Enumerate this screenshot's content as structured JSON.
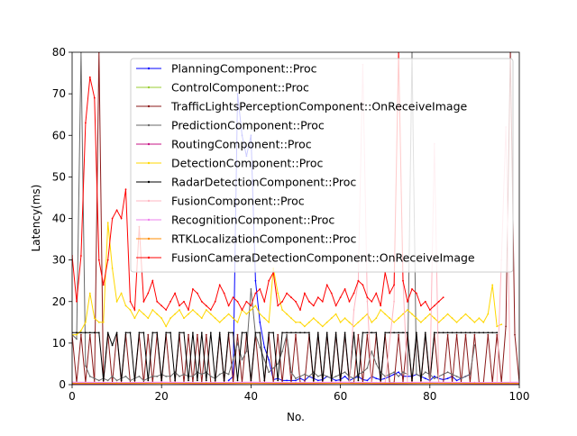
{
  "chart_data": {
    "type": "line",
    "xlabel": "No.",
    "ylabel": "Latency(ms)",
    "xlim": [
      0,
      100
    ],
    "ylim": [
      0,
      80
    ],
    "xticks": [
      0,
      20,
      40,
      60,
      80,
      100
    ],
    "yticks": [
      0,
      10,
      20,
      30,
      40,
      50,
      60,
      70,
      80
    ],
    "legend_position": "top-right",
    "grid": false,
    "series": [
      {
        "name": "PlanningComponent::Proc",
        "color": "#0000ff",
        "x": [
          35,
          36,
          37,
          38,
          39,
          40,
          41,
          42,
          43,
          44,
          45,
          46,
          47,
          48,
          49,
          50,
          51,
          52,
          53,
          54,
          55,
          56,
          57,
          58,
          59,
          60,
          61,
          62,
          63,
          64,
          65,
          66,
          67,
          68,
          69,
          70,
          71,
          72,
          73,
          74,
          75,
          76,
          77,
          78,
          79,
          80,
          81,
          82,
          83,
          84,
          85,
          86,
          87,
          88,
          89
        ],
        "values": [
          1,
          2,
          70,
          60,
          55,
          60,
          25,
          15,
          9,
          6,
          1.2,
          1.5,
          1,
          1,
          1,
          1,
          1.5,
          1,
          2,
          1.5,
          1,
          1.2,
          2,
          1.5,
          1,
          1.2,
          2,
          1,
          1.5,
          2,
          1.2,
          1,
          2,
          1.5,
          1.2,
          1.5,
          2,
          2.5,
          3,
          2,
          2,
          2,
          2.5,
          2,
          1.5,
          1,
          2,
          1.5,
          1.2,
          1.5,
          2,
          1,
          1.5,
          2,
          2.5
        ]
      },
      {
        "name": "ControlComponent::Proc",
        "color": "#9acd32",
        "x": [
          0,
          5,
          10,
          15,
          20,
          25,
          30,
          35,
          40,
          45,
          50,
          55,
          60,
          65,
          70,
          75,
          80,
          85,
          90,
          95,
          100
        ],
        "values": [
          0.4,
          0.3,
          0.4,
          0.3,
          0.4,
          0.3,
          0.4,
          0.3,
          0.4,
          0.3,
          0.4,
          0.3,
          0.4,
          0.3,
          0.4,
          0.3,
          0.4,
          0.3,
          0.4,
          0.5,
          0.4
        ]
      },
      {
        "name": "TrafficLightsPerceptionComponent::OnReceiveImage",
        "color": "#8b1a1a",
        "x": [
          0,
          1,
          2,
          3,
          4,
          5,
          6,
          7,
          8,
          9,
          10,
          11,
          12,
          13,
          14,
          15,
          16,
          17,
          18,
          19,
          20,
          21,
          22,
          23,
          24,
          25,
          26,
          27,
          28,
          29,
          30,
          31,
          32,
          33,
          34,
          35,
          36,
          37,
          38,
          39,
          40,
          41,
          42,
          43,
          44,
          45,
          46,
          47,
          48,
          49,
          50,
          51,
          52,
          53,
          54,
          55,
          56,
          57,
          58,
          59,
          60,
          61,
          62,
          63,
          64,
          65,
          66,
          67,
          68,
          69,
          70,
          71,
          72,
          73,
          74,
          75,
          76,
          77,
          78,
          79,
          80,
          81,
          82,
          83,
          84,
          85,
          86,
          87,
          88,
          89,
          90,
          91,
          92,
          93,
          94,
          95,
          96,
          97,
          98,
          99,
          100
        ],
        "values": [
          12,
          0.5,
          12,
          0.5,
          12,
          0.5,
          80,
          0.5,
          12,
          0.5,
          12,
          0.5,
          12,
          0.5,
          0.5,
          12,
          0.5,
          12,
          0.5,
          12,
          0.5,
          12,
          0.5,
          0.5,
          12,
          0.5,
          12,
          0.5,
          12,
          0.5,
          12,
          0.5,
          0.5,
          12,
          0.5,
          12,
          0.5,
          12,
          0.5,
          12,
          0.5,
          12,
          0.5,
          0.5,
          12,
          0.5,
          12,
          0.5,
          12,
          0.5,
          12,
          0.5,
          0.5,
          12,
          0.5,
          12,
          0.5,
          12,
          0.5,
          12,
          0.5,
          12,
          0.5,
          0.5,
          12,
          0.5,
          12,
          0.5,
          12,
          0.5,
          12,
          0.5,
          0.5,
          12,
          0.5,
          12,
          0.5,
          12,
          0.5,
          12,
          0.5,
          12,
          0.5,
          0.5,
          12,
          0.5,
          12,
          0.5,
          12,
          0.5,
          12,
          0.5,
          0.5,
          12,
          0.5,
          12,
          0.5,
          14,
          80,
          12,
          0.5
        ]
      },
      {
        "name": "PredictionComponent::Proc",
        "color": "#696969",
        "x": [
          0,
          1,
          2,
          3,
          4,
          5,
          6,
          7,
          8,
          9,
          10,
          11,
          12,
          13,
          14,
          15,
          16,
          17,
          18,
          19,
          20,
          21,
          22,
          23,
          24,
          25,
          26,
          27,
          28,
          29,
          30,
          31,
          32,
          33,
          34,
          35,
          36,
          37,
          38,
          39,
          40,
          41,
          42,
          43,
          44,
          45,
          46,
          47,
          48,
          49,
          50,
          51,
          52,
          53,
          54,
          55,
          56,
          57,
          58,
          59,
          60,
          61,
          62,
          63,
          64,
          65,
          66,
          67,
          68,
          69,
          70,
          71,
          72,
          73,
          74,
          75,
          76,
          77,
          78,
          79,
          80,
          81,
          82,
          83,
          84,
          85,
          86,
          87,
          88,
          89,
          90
        ],
        "values": [
          12,
          11,
          80,
          4.5,
          2,
          1.5,
          1,
          1.5,
          1,
          2,
          1,
          1.5,
          2,
          1,
          1.5,
          2,
          1,
          1.5,
          2,
          2,
          2.5,
          2,
          2,
          3,
          2,
          2.5,
          2,
          2,
          3,
          2.5,
          3,
          2,
          1.5,
          2.5,
          3,
          2.5,
          6,
          10,
          6,
          8,
          23,
          12,
          9,
          6,
          3,
          4,
          5,
          8,
          12,
          3,
          1.5,
          2,
          2.5,
          2,
          3,
          2,
          2.5,
          2,
          1.5,
          2,
          2.5,
          3,
          2,
          1.5,
          2.5,
          3,
          4,
          8,
          5,
          3,
          2,
          2.5,
          3,
          2,
          3,
          2.5,
          80,
          2.5,
          2,
          3,
          2.5,
          1.5,
          2,
          2.5,
          3,
          2.5,
          2,
          1.5,
          2,
          2.5,
          9.5
        ]
      },
      {
        "name": "RoutingComponent::Proc",
        "color": "#c71585",
        "x": [
          0,
          10,
          20,
          30,
          40,
          50,
          60,
          70,
          80,
          90,
          100
        ],
        "values": [
          0.2,
          0.2,
          0.3,
          0.2,
          0.3,
          0.2,
          0.3,
          0.2,
          0.3,
          0.2,
          0.2
        ]
      },
      {
        "name": "DetectionComponent::Proc",
        "color": "#ffd700",
        "x": [
          0,
          1,
          2,
          3,
          4,
          5,
          6,
          7,
          8,
          9,
          10,
          11,
          12,
          13,
          14,
          15,
          16,
          17,
          18,
          19,
          20,
          21,
          22,
          23,
          24,
          25,
          26,
          27,
          28,
          29,
          30,
          31,
          32,
          33,
          34,
          35,
          36,
          37,
          38,
          39,
          40,
          41,
          42,
          43,
          44,
          45,
          46,
          47,
          48,
          49,
          50,
          51,
          52,
          53,
          54,
          55,
          56,
          57,
          58,
          59,
          60,
          61,
          62,
          63,
          64,
          65,
          66,
          67,
          68,
          69,
          70,
          71,
          72,
          73,
          74,
          75,
          76,
          77,
          78,
          79,
          80,
          81,
          82,
          83,
          84,
          85,
          86,
          87,
          88,
          89,
          90,
          91,
          92,
          93,
          94,
          95,
          96
        ],
        "values": [
          12,
          12,
          13,
          15,
          22,
          16,
          15,
          15,
          39,
          28,
          20,
          22,
          19,
          18,
          16,
          18,
          17,
          16,
          18,
          17,
          16,
          14,
          16,
          17,
          18,
          16,
          17,
          18,
          17,
          16,
          18,
          17,
          16,
          15,
          16,
          17,
          16,
          15,
          18,
          17,
          18,
          19,
          17,
          16,
          15,
          28,
          22,
          18,
          17,
          16,
          15,
          15,
          14,
          15,
          16,
          15,
          14,
          15,
          16,
          17,
          15,
          16,
          15,
          14,
          15,
          16,
          17,
          15,
          16,
          18,
          17,
          16,
          15,
          16,
          17,
          18,
          17,
          16,
          15,
          16,
          17,
          16,
          15,
          16,
          17,
          16,
          15,
          16,
          17,
          16,
          15,
          16,
          15,
          17,
          24,
          14,
          14.5
        ]
      },
      {
        "name": "RadarDetectionComponent::Proc",
        "color": "#000000",
        "x": [
          0,
          1,
          2,
          3,
          4,
          5,
          6,
          7,
          8,
          9,
          10,
          11,
          12,
          13,
          14,
          15,
          16,
          17,
          18,
          19,
          20,
          21,
          22,
          23,
          24,
          25,
          26,
          27,
          28,
          29,
          30,
          31,
          32,
          33,
          34,
          35,
          36,
          37,
          38,
          39,
          40,
          41,
          42,
          43,
          44,
          45,
          46,
          47,
          48,
          49,
          50,
          51,
          52,
          53,
          54,
          55,
          56,
          57,
          58,
          59,
          60,
          61,
          62,
          63,
          64,
          65,
          66,
          67,
          68,
          69,
          70,
          71,
          72,
          73,
          74,
          75,
          76,
          77,
          78,
          79,
          80,
          81,
          82,
          83,
          84,
          85,
          86,
          87,
          88,
          89,
          90,
          91,
          92,
          93,
          94,
          95
        ],
        "values": [
          12.5,
          12.5,
          12.5,
          12.5,
          12.5,
          12.5,
          12.5,
          1,
          12.5,
          9.5,
          12.5,
          1,
          12.5,
          12.5,
          1,
          12.5,
          12.5,
          1,
          12.5,
          12.5,
          1,
          12.5,
          12.5,
          1,
          12.5,
          12.5,
          1,
          12.5,
          1,
          12.5,
          1,
          12.5,
          1,
          12.5,
          1,
          12.5,
          12.5,
          1,
          12.5,
          12.5,
          1,
          12.5,
          12.5,
          1,
          12.5,
          12.5,
          1,
          12.5,
          12.5,
          12.5,
          12.5,
          12.5,
          12.5,
          12.5,
          1,
          12.5,
          1,
          12.5,
          1,
          12.5,
          1,
          12.5,
          1,
          12.5,
          1,
          12.5,
          12.5,
          12.5,
          12.5,
          1,
          12.5,
          12.5,
          12.5,
          12.5,
          12.5,
          12.5,
          1,
          12.5,
          1,
          12.5,
          1,
          12.5,
          12.5,
          12.5,
          12.5,
          12.5,
          12.5,
          12.5,
          12.5,
          12.5,
          12.5,
          12.5,
          12.5,
          12.5,
          12.5,
          12.5
        ]
      },
      {
        "name": "FusionComponent::Proc",
        "color": "#ffb6c1",
        "x": [
          0,
          5,
          10,
          15,
          20,
          25,
          30,
          35,
          40,
          45,
          50,
          55,
          60,
          62,
          63,
          64,
          65,
          66,
          67,
          68,
          70,
          72,
          73,
          74,
          75,
          78,
          80,
          81,
          82,
          83,
          85,
          90,
          95,
          96,
          97,
          98,
          100
        ],
        "values": [
          0.5,
          0.5,
          0.5,
          0.5,
          0.5,
          0.5,
          0.5,
          0.5,
          0.5,
          0.5,
          0.5,
          0.5,
          0.5,
          0.5,
          18,
          25,
          77,
          20,
          0.5,
          0.5,
          0.5,
          20,
          80,
          25,
          0.5,
          0.5,
          0.5,
          58,
          0.5,
          0.5,
          0.5,
          0.5,
          0.5,
          30,
          62,
          0.5,
          0.5
        ]
      },
      {
        "name": "RecognitionComponent::Proc",
        "color": "#ee82ee",
        "x": [
          0,
          10,
          20,
          30,
          40,
          50,
          60,
          70,
          80,
          90,
          100
        ],
        "values": [
          0.6,
          0.5,
          0.6,
          0.5,
          0.6,
          0.5,
          0.6,
          0.5,
          0.6,
          0.5,
          0.6
        ]
      },
      {
        "name": "RTKLocalizationComponent::Proc",
        "color": "#ff8c00",
        "x": [
          0,
          10,
          20,
          30,
          40,
          50,
          60,
          70,
          80,
          90,
          100
        ],
        "values": [
          0.3,
          0.3,
          0.3,
          0.3,
          0.3,
          0.3,
          0.3,
          0.3,
          0.3,
          0.3,
          0.3
        ]
      },
      {
        "name": "FusionCameraDetectionComponent::OnReceiveImage",
        "color": "#ff0000",
        "x": [
          0,
          1,
          2,
          3,
          4,
          5,
          6,
          7,
          8,
          9,
          10,
          11,
          12,
          13,
          14,
          15,
          16,
          17,
          18,
          19,
          20,
          21,
          22,
          23,
          24,
          25,
          26,
          27,
          28,
          29,
          30,
          31,
          32,
          33,
          34,
          35,
          36,
          37,
          38,
          39,
          40,
          41,
          42,
          43,
          44,
          45,
          46,
          47,
          48,
          49,
          50,
          51,
          52,
          53,
          54,
          55,
          56,
          57,
          58,
          59,
          60,
          61,
          62,
          63,
          64,
          65,
          66,
          67,
          68,
          69,
          70,
          71,
          72,
          73,
          74,
          75,
          76,
          77,
          78,
          79,
          80,
          81,
          82,
          83
        ],
        "values": [
          31,
          20,
          31,
          63,
          74,
          69,
          30,
          24,
          30,
          40,
          42,
          40,
          47,
          20,
          18,
          38,
          20,
          22,
          25,
          20,
          19,
          18,
          20,
          22,
          19,
          20,
          18,
          23,
          22,
          20,
          19,
          18,
          20,
          24,
          22,
          19,
          21,
          20,
          18,
          20,
          19,
          22,
          23,
          20,
          25,
          27,
          19,
          20,
          22,
          21,
          20,
          18,
          22,
          20,
          19,
          21,
          20,
          24,
          22,
          19,
          21,
          23,
          20,
          22,
          25,
          24,
          21,
          20,
          22,
          19,
          27,
          22,
          24,
          80,
          25,
          20,
          23,
          22,
          19,
          20,
          18,
          19,
          20,
          21
        ]
      }
    ]
  }
}
